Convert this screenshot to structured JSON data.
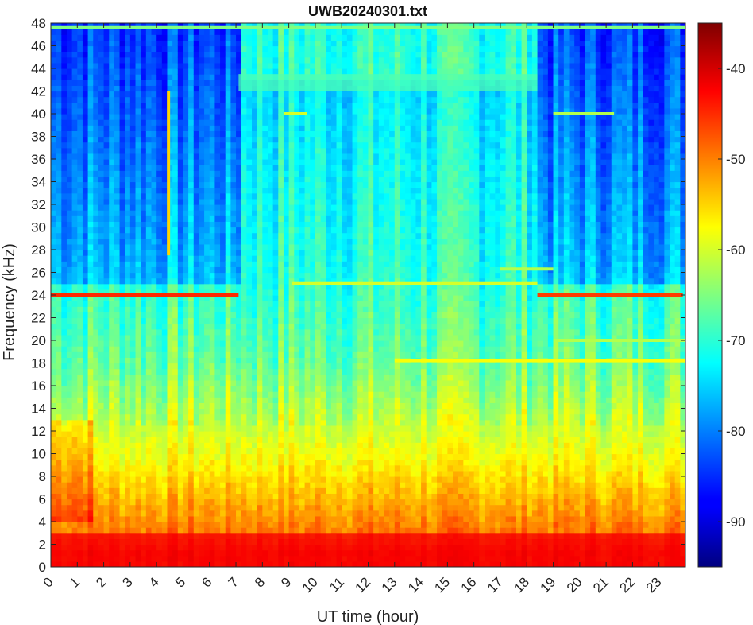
{
  "chart_data": {
    "type": "heatmap",
    "title": "UWB20240301.txt",
    "xlabel": "UT time (hour)",
    "ylabel": "Frequency (kHz)",
    "xlim": [
      0,
      24
    ],
    "ylim": [
      0,
      48
    ],
    "x_ticks": [
      0,
      1,
      2,
      3,
      4,
      5,
      6,
      7,
      8,
      9,
      10,
      11,
      12,
      13,
      14,
      15,
      16,
      17,
      18,
      19,
      20,
      21,
      22,
      23
    ],
    "x_tick_labels": [
      "0",
      "1",
      "2",
      "3",
      "4",
      "5",
      "6",
      "7",
      "8",
      "9",
      "10",
      "11",
      "12",
      "13",
      "14",
      "15",
      "16",
      "17",
      "18",
      "19",
      "20",
      "21",
      "22",
      "23"
    ],
    "y_ticks": [
      0,
      2,
      4,
      6,
      8,
      10,
      12,
      14,
      16,
      18,
      20,
      22,
      24,
      26,
      28,
      30,
      32,
      34,
      36,
      38,
      40,
      42,
      44,
      46,
      48
    ],
    "y_tick_labels": [
      "0",
      "2",
      "4",
      "6",
      "8",
      "10",
      "12",
      "14",
      "16",
      "18",
      "20",
      "22",
      "24",
      "26",
      "28",
      "30",
      "32",
      "34",
      "36",
      "38",
      "40",
      "42",
      "44",
      "46",
      "48"
    ],
    "colorbar": {
      "range": [
        -95,
        -35
      ],
      "ticks": [
        -40,
        -50,
        -60,
        -70,
        -80,
        -90
      ],
      "tick_labels": [
        "-40",
        "-50",
        "-60",
        "-70",
        "-80",
        "-90"
      ],
      "colormap": "jet"
    },
    "features": [
      {
        "name": "low-frequency band",
        "x": [
          0,
          24
        ],
        "y": [
          0,
          3
        ],
        "level_db": -42
      },
      {
        "name": "24 kHz transmitter (early)",
        "x": [
          0,
          7.1
        ],
        "y": 24,
        "level_db": -45
      },
      {
        "name": "24 kHz transmitter (late)",
        "x": [
          18.4,
          23.9
        ],
        "y": 24,
        "level_db": -46
      },
      {
        "name": "25 kHz line",
        "x": [
          9.1,
          18.4
        ],
        "y": 25,
        "level_db": -60
      },
      {
        "name": "18.2 kHz line",
        "x": [
          13,
          24
        ],
        "y": 18.2,
        "level_db": -58
      },
      {
        "name": "26.3 kHz line",
        "x": [
          17,
          19
        ],
        "y": 26.3,
        "level_db": -62
      },
      {
        "name": "40 kHz line (early)",
        "x": [
          8.8,
          9.7
        ],
        "y": 40,
        "level_db": -60
      },
      {
        "name": "40 kHz line (late)",
        "x": [
          19,
          21.3
        ],
        "y": 40,
        "level_db": -62
      },
      {
        "name": "20 kHz line",
        "x": [
          19,
          24
        ],
        "y": 20,
        "level_db": -62
      },
      {
        "name": "vertical burst",
        "x": 4.45,
        "y": [
          27.5,
          42
        ],
        "level_db": -55
      },
      {
        "name": "42.6 kHz band",
        "x": [
          7.1,
          18.4
        ],
        "y": [
          42,
          43.5
        ],
        "level_db": -68
      },
      {
        "name": "48 kHz edge line",
        "x": [
          0,
          24
        ],
        "y": 47.6,
        "level_db": -65
      }
    ]
  }
}
